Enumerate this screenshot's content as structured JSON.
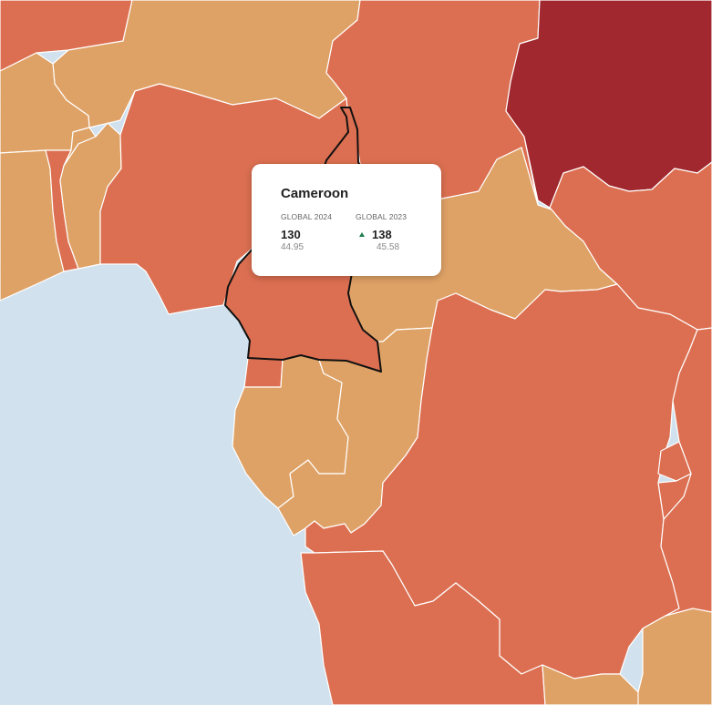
{
  "tooltip": {
    "country": "Cameroon",
    "col_2024": {
      "label": "GLOBAL 2024",
      "rank": "130",
      "score": "44.95"
    },
    "col_2023": {
      "label": "GLOBAL 2023",
      "rank": "138",
      "score": "45.58",
      "change": "up"
    }
  },
  "colors": {
    "sea": "#d1e2ee",
    "tier_light": "#dfa266",
    "tier_mid": "#dc6f51",
    "tier_dark": "#a0282e",
    "selected_border": "#111111",
    "trend_up": "#1f7a4d"
  },
  "map": {
    "selected_country": "Cameroon",
    "regions": [
      {
        "id": "mali-north",
        "tier": "mid"
      },
      {
        "id": "niger",
        "tier": "light"
      },
      {
        "id": "chad",
        "tier": "mid"
      },
      {
        "id": "sudan",
        "tier": "dark"
      },
      {
        "id": "west-coast-1",
        "tier": "light"
      },
      {
        "id": "burkina-faso",
        "tier": "light"
      },
      {
        "id": "ghana",
        "tier": "mid"
      },
      {
        "id": "togo",
        "tier": "light"
      },
      {
        "id": "benin",
        "tier": "light"
      },
      {
        "id": "nigeria",
        "tier": "mid"
      },
      {
        "id": "cameroon",
        "tier": "mid"
      },
      {
        "id": "central-african-republic",
        "tier": "light"
      },
      {
        "id": "south-sudan",
        "tier": "mid"
      },
      {
        "id": "equatorial-guinea",
        "tier": "mid"
      },
      {
        "id": "gabon",
        "tier": "light"
      },
      {
        "id": "congo",
        "tier": "light"
      },
      {
        "id": "dr-congo",
        "tier": "mid"
      },
      {
        "id": "east-africa",
        "tier": "mid"
      },
      {
        "id": "rwanda",
        "tier": "mid"
      },
      {
        "id": "burundi",
        "tier": "mid"
      },
      {
        "id": "angola",
        "tier": "mid"
      },
      {
        "id": "zambia",
        "tier": "light"
      },
      {
        "id": "tanzania",
        "tier": "light"
      }
    ]
  }
}
